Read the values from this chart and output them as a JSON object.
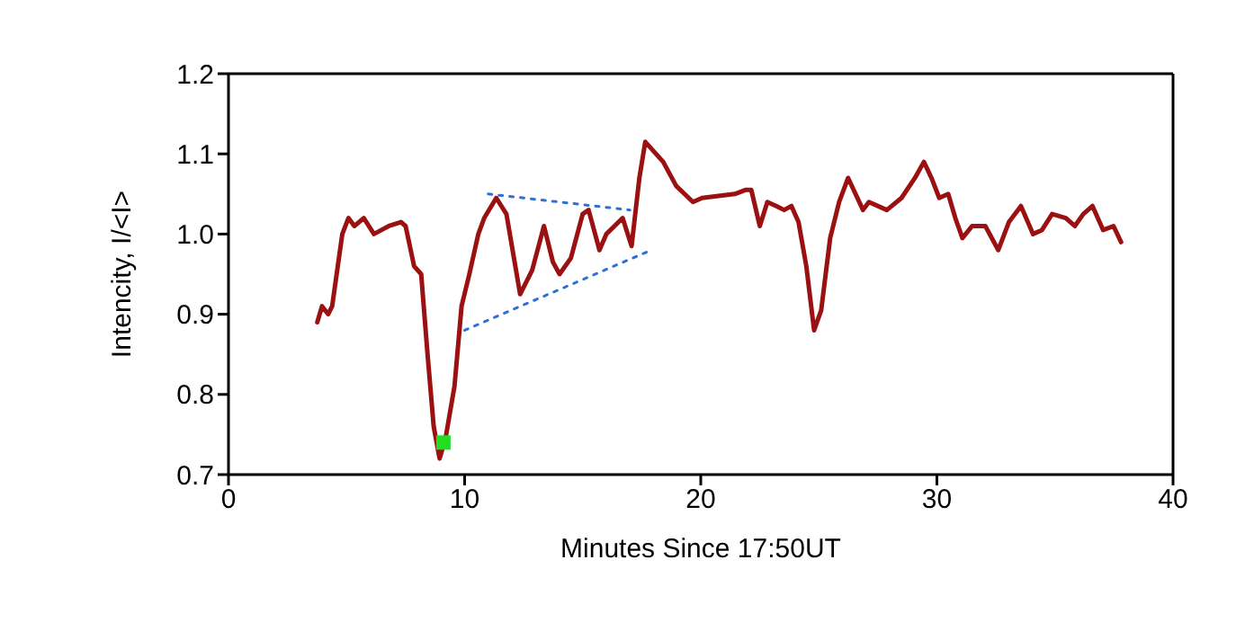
{
  "chart_data": {
    "type": "line",
    "xlabel": "Minutes Since 17:50UT",
    "ylabel": "Intencity, I/<I>",
    "xlim": [
      0,
      40
    ],
    "xticks": [
      0,
      10,
      20,
      30,
      40
    ],
    "ylim": [
      0.7,
      1.2
    ],
    "yticks": [
      0.7,
      0.8,
      0.9,
      {
        "value": 1,
        "label": "1.0"
      },
      1.1,
      1.2
    ],
    "grid": false,
    "marker": "none",
    "line_style": "solid",
    "series": [
      {
        "color": "#9b1010",
        "x": [
          3.76,
          3.96,
          4.22,
          4.39,
          4.82,
          5.08,
          5.33,
          5.73,
          6.16,
          6.79,
          7.3,
          7.5,
          7.86,
          8.16,
          8.43,
          8.69,
          8.94,
          9.19,
          9.57,
          9.87,
          10.2,
          10.58,
          10.83,
          11.34,
          11.77,
          12.35,
          12.86,
          13.36,
          13.74,
          14.02,
          14.5,
          15.0,
          15.25,
          15.71,
          16.0,
          16.52,
          16.69,
          17.07,
          17.4,
          17.65,
          18.41,
          18.96,
          19.67,
          20.05,
          21.44,
          21.89,
          22.14,
          22.5,
          22.82,
          23.2,
          23.53,
          23.84,
          24.14,
          24.47,
          24.8,
          25.1,
          25.48,
          25.86,
          26.24,
          26.87,
          27.12,
          27.88,
          28.5,
          29.07,
          29.45,
          29.77,
          30.1,
          30.48,
          30.78,
          31.08,
          31.49,
          32.05,
          32.6,
          33.05,
          33.56,
          34.07,
          34.45,
          34.88,
          35.46,
          35.84,
          36.2,
          36.59,
          37.04,
          37.48,
          37.8
        ],
        "values": [
          0.89,
          0.91,
          0.9,
          0.91,
          1.0,
          1.02,
          1.01,
          1.02,
          1.0,
          1.01,
          1.015,
          1.01,
          0.96,
          0.95,
          0.85,
          0.76,
          0.72,
          0.745,
          0.81,
          0.91,
          0.95,
          1.0,
          1.02,
          1.045,
          1.025,
          0.925,
          0.955,
          1.01,
          0.965,
          0.95,
          0.97,
          1.025,
          1.03,
          0.98,
          1.0,
          1.015,
          1.02,
          0.985,
          1.07,
          1.115,
          1.09,
          1.06,
          1.04,
          1.045,
          1.05,
          1.055,
          1.055,
          1.01,
          1.04,
          1.035,
          1.03,
          1.035,
          1.015,
          0.96,
          0.88,
          0.905,
          0.995,
          1.04,
          1.07,
          1.03,
          1.04,
          1.03,
          1.045,
          1.07,
          1.09,
          1.07,
          1.045,
          1.05,
          1.02,
          0.995,
          1.01,
          1.01,
          0.98,
          1.015,
          1.035,
          1.0,
          1.005,
          1.025,
          1.02,
          1.01,
          1.025,
          1.035,
          1.005,
          1.01,
          0.99
        ]
      },
      {
        "color": "#2f6fd8",
        "line_style": "dotted",
        "x": [
          11.0,
          17.0
        ],
        "values": [
          1.05,
          1.03
        ]
      },
      {
        "color": "#2f6fd8",
        "line_style": "dotted",
        "x": [
          10.0,
          17.9
        ],
        "values": [
          0.88,
          0.98
        ]
      },
      {
        "type": "scatter",
        "color": "#22dd22",
        "marker": "square",
        "x": [
          9.1
        ],
        "values": [
          0.74
        ]
      }
    ]
  }
}
